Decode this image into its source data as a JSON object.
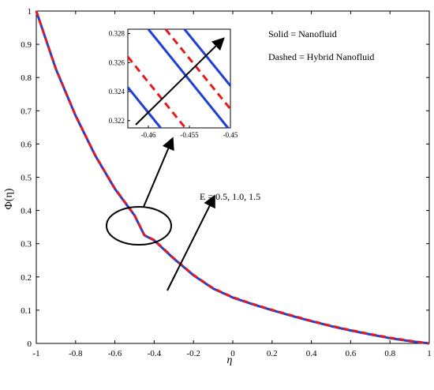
{
  "chart_data": {
    "type": "line",
    "xlabel": "η",
    "ylabel": "Φ(η)",
    "xlim": [
      -1,
      1
    ],
    "ylim": [
      0,
      1
    ],
    "x_ticks": [
      -1,
      -0.8,
      -0.6,
      -0.4,
      -0.2,
      0,
      0.2,
      0.4,
      0.6,
      0.8,
      1
    ],
    "y_ticks": [
      0,
      0.1,
      0.2,
      0.3,
      0.4,
      0.5,
      0.6,
      0.7,
      0.8,
      0.9,
      1
    ],
    "grid": false,
    "series": [
      {
        "style": "solid",
        "color": "#1f3fd6",
        "x": [
          -1,
          -0.9,
          -0.8,
          -0.7,
          -0.6,
          -0.5,
          -0.45,
          -0.4,
          -0.3,
          -0.2,
          -0.1,
          0,
          0.1,
          0.2,
          0.3,
          0.4,
          0.5,
          0.6,
          0.7,
          0.8,
          0.9,
          1
        ],
        "y": [
          1.0,
          0.825,
          0.685,
          0.565,
          0.465,
          0.385,
          0.3252,
          0.31,
          0.255,
          0.205,
          0.165,
          0.138,
          0.118,
          0.1,
          0.083,
          0.067,
          0.052,
          0.039,
          0.027,
          0.016,
          0.007,
          0
        ]
      },
      {
        "style": "dashed",
        "color": "#e41a1c",
        "x": [
          -1,
          -0.9,
          -0.8,
          -0.7,
          -0.6,
          -0.5,
          -0.45,
          -0.4,
          -0.3,
          -0.2,
          -0.1,
          0,
          0.1,
          0.2,
          0.3,
          0.4,
          0.5,
          0.6,
          0.7,
          0.8,
          0.9,
          1
        ],
        "y": [
          1.0,
          0.826,
          0.686,
          0.566,
          0.466,
          0.386,
          0.3256,
          0.311,
          0.256,
          0.206,
          0.166,
          0.139,
          0.119,
          0.101,
          0.084,
          0.068,
          0.053,
          0.04,
          0.028,
          0.017,
          0.008,
          0
        ]
      }
    ],
    "annotations": {
      "legend_solid": "Solid    = Nanofluid",
      "legend_dashed": "Dashed = Hybrid Nanofluid",
      "param_label": "E = 0.5, 1.0, 1.5"
    },
    "inset": {
      "xlim": [
        -0.4625,
        -0.45
      ],
      "ylim": [
        0.3215,
        0.3283
      ],
      "x_ticks": [
        -0.46,
        -0.455,
        -0.45
      ],
      "y_ticks": [
        0.322,
        0.324,
        0.326,
        0.328
      ],
      "solid_lines": [
        {
          "x": [
            -0.4625,
            -0.4585
          ],
          "y": [
            0.3243,
            0.3215
          ]
        },
        {
          "x": [
            -0.46,
            -0.4503
          ],
          "y": [
            0.3283,
            0.3215
          ]
        },
        {
          "x": [
            -0.4556,
            -0.45
          ],
          "y": [
            0.3283,
            0.3244
          ]
        }
      ],
      "dashed_lines": [
        {
          "x": [
            -0.4625,
            -0.4555
          ],
          "y": [
            0.3264,
            0.3215
          ]
        },
        {
          "x": [
            -0.4579,
            -0.45
          ],
          "y": [
            0.3283,
            0.3228
          ]
        }
      ]
    }
  }
}
